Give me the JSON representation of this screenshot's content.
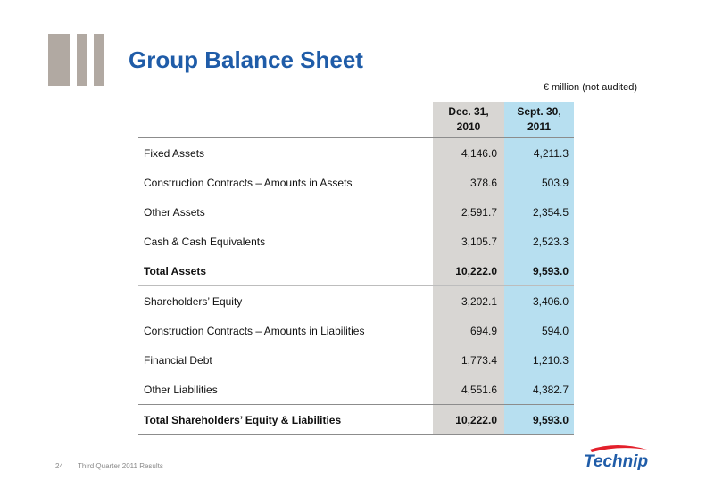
{
  "title": "Group Balance Sheet",
  "unit_note": "€ million (not audited)",
  "columns": {
    "dec": "Dec. 31,\n2010",
    "sep": "Sept. 30,\n2011"
  },
  "rows": [
    {
      "label": "Fixed Assets",
      "dec": "4,146.0",
      "sep": "4,211.3"
    },
    {
      "label": "Construction Contracts – Amounts in Assets",
      "dec": "378.6",
      "sep": "503.9"
    },
    {
      "label": "Other Assets",
      "dec": "2,591.7",
      "sep": "2,354.5"
    },
    {
      "label": "Cash & Cash Equivalents",
      "dec": "3,105.7",
      "sep": "2,523.3"
    },
    {
      "label": "Total Assets",
      "dec": "10,222.0",
      "sep": "9,593.0"
    },
    {
      "label": "Shareholders’ Equity",
      "dec": "3,202.1",
      "sep": "3,406.0"
    },
    {
      "label": "Construction Contracts – Amounts in Liabilities",
      "dec": "694.9",
      "sep": "594.0"
    },
    {
      "label": "Financial Debt",
      "dec": "1,773.4",
      "sep": "1,210.3"
    },
    {
      "label": "Other Liabilities",
      "dec": "4,551.6",
      "sep": "4,382.7"
    },
    {
      "label": "Total Shareholders’ Equity & Liabilities",
      "dec": "10,222.0",
      "sep": "9,593.0"
    }
  ],
  "footer": {
    "page_number": "24",
    "text": "Third Quarter 2011 Results"
  },
  "logo": {
    "text": "Technip",
    "color": "#1f5ca8",
    "accent": "#e3202b"
  }
}
